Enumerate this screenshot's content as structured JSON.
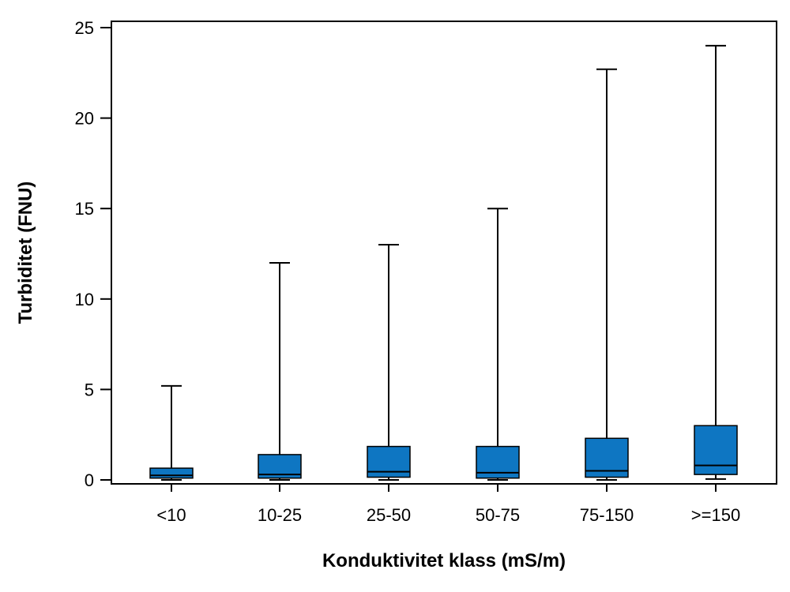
{
  "chart_data": {
    "type": "boxplot",
    "title": "",
    "xlabel": "Konduktivitet klass (mS/m)",
    "ylabel": "Turbiditet (FNU)",
    "ylim": [
      0,
      25
    ],
    "yticks": [
      0,
      5,
      10,
      15,
      20,
      25
    ],
    "categories": [
      "<10",
      "10-25",
      "25-50",
      "50-75",
      "75-150",
      ">=150"
    ],
    "boxes": [
      {
        "category": "<10",
        "whisker_low": 0.0,
        "q1": 0.1,
        "median": 0.25,
        "q3": 0.65,
        "whisker_high": 5.2
      },
      {
        "category": "10-25",
        "whisker_low": 0.0,
        "q1": 0.1,
        "median": 0.3,
        "q3": 1.4,
        "whisker_high": 12.0
      },
      {
        "category": "25-50",
        "whisker_low": 0.0,
        "q1": 0.15,
        "median": 0.45,
        "q3": 1.85,
        "whisker_high": 13.0
      },
      {
        "category": "50-75",
        "whisker_low": 0.0,
        "q1": 0.1,
        "median": 0.4,
        "q3": 1.85,
        "whisker_high": 15.0
      },
      {
        "category": "75-150",
        "whisker_low": 0.0,
        "q1": 0.15,
        "median": 0.5,
        "q3": 2.3,
        "whisker_high": 22.7
      },
      {
        "category": ">=150",
        "whisker_low": 0.05,
        "q1": 0.3,
        "median": 0.8,
        "q3": 3.0,
        "whisker_high": 24.0
      }
    ],
    "box_color": "#0E76C2",
    "grid": false,
    "legend": "none"
  }
}
